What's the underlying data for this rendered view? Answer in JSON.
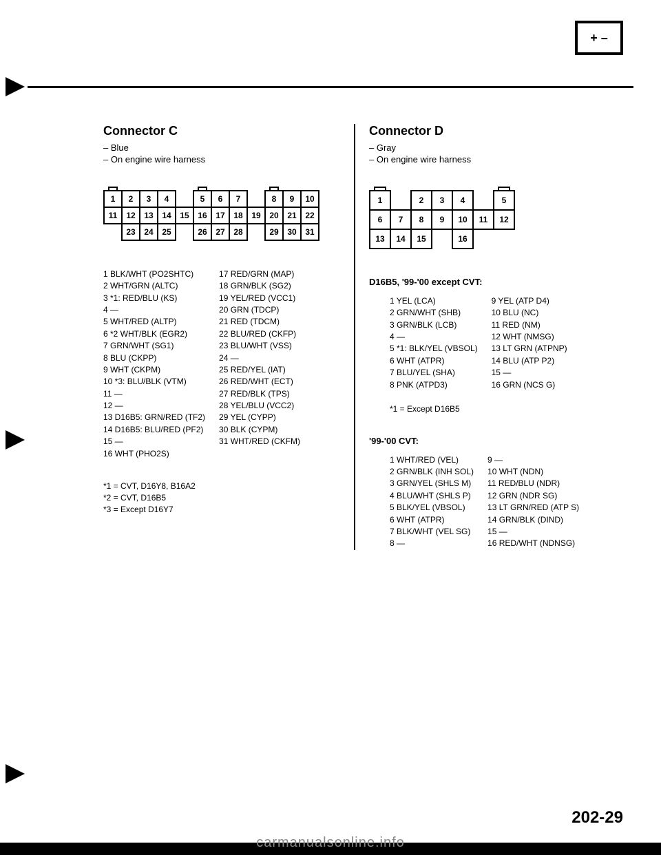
{
  "pageIcon": "+ –",
  "pageNumber": "202-29",
  "watermark": "carmanualsonline.info",
  "connectorC": {
    "title": "Connector C",
    "sub1": "– Blue",
    "sub2": "– On engine wire harness",
    "grid": {
      "rows": [
        [
          "1",
          "2",
          "3",
          "4",
          "",
          "5",
          "6",
          "7",
          "",
          "8",
          "9",
          "10"
        ],
        [
          "11",
          "12",
          "13",
          "14",
          "15",
          "16",
          "17",
          "18",
          "19",
          "20",
          "21",
          "22"
        ],
        [
          "",
          "23",
          "24",
          "25",
          "",
          "26",
          "27",
          "28",
          "",
          "29",
          "30",
          "31"
        ]
      ],
      "notchRow": [
        "n",
        "",
        "",
        "",
        "",
        "n",
        "",
        "",
        "",
        "n",
        "",
        "",
        ""
      ]
    },
    "wiresLeft": [
      "1 BLK/WHT (PO2SHTC)",
      "2 WHT/GRN (ALTC)",
      "3 *1: RED/BLU (KS)",
      "4 —",
      "5 WHT/RED (ALTP)",
      "6 *2 WHT/BLK (EGR2)",
      "7 GRN/WHT (SG1)",
      "8 BLU (CKPP)",
      "9 WHT (CKPM)",
      "10 *3: BLU/BLK (VTM)",
      "11 —",
      "12 —",
      "13 D16B5: GRN/RED (TF2)",
      "14 D16B5: BLU/RED (PF2)",
      "15 —",
      "16 WHT (PHO2S)"
    ],
    "wiresRight": [
      "17 RED/GRN (MAP)",
      "18 GRN/BLK (SG2)",
      "19 YEL/RED (VCC1)",
      "20 GRN (TDCP)",
      "21 RED (TDCM)",
      "22 BLU/RED (CKFP)",
      "23 BLU/WHT (VSS)",
      "24 —",
      "25 RED/YEL (IAT)",
      "26 RED/WHT (ECT)",
      "27 RED/BLK (TPS)",
      "28 YEL/BLU (VCC2)",
      "29 YEL (CYPP)",
      "30 BLK (CYPM)",
      "31 WHT/RED (CKFM)"
    ],
    "footnotes": [
      "*1 = CVT, D16Y8, B16A2",
      "*2 = CVT, D16B5",
      "*3 = Except D16Y7"
    ]
  },
  "connectorD": {
    "title": "Connector D",
    "sub1": "– Gray",
    "sub2": "– On engine wire harness",
    "grid": {
      "rows": [
        [
          "1",
          "",
          "2",
          "3",
          "4",
          "",
          "5"
        ],
        [
          "6",
          "7",
          "8",
          "9",
          "10",
          "11",
          "12"
        ],
        [
          "13",
          "14",
          "15",
          "",
          "16",
          "",
          ""
        ]
      ],
      "notchRow": [
        "n",
        "",
        "",
        "",
        "",
        "",
        "n"
      ]
    },
    "section1": {
      "header": "D16B5, '99-'00 except CVT:",
      "left": [
        "1 YEL (LCA)",
        "2 GRN/WHT (SHB)",
        "3 GRN/BLK (LCB)",
        "4 —",
        "5 *1: BLK/YEL (VBSOL)",
        "6 WHT (ATPR)",
        "7 BLU/YEL (SHA)",
        "8 PNK (ATPD3)"
      ],
      "right": [
        "9 YEL (ATP D4)",
        "10 BLU (NC)",
        "11 RED (NM)",
        "12 WHT (NMSG)",
        "13 LT GRN (ATPNP)",
        "14 BLU (ATP P2)",
        "15 —",
        "16 GRN (NCS G)"
      ],
      "footnote": "*1 = Except D16B5"
    },
    "section2": {
      "header": "'99-'00 CVT:",
      "left": [
        "1 WHT/RED (VEL)",
        "2 GRN/BLK (INH SOL)",
        "3 GRN/YEL (SHLS M)",
        "4 BLU/WHT (SHLS P)",
        "5 BLK/YEL (VBSOL)",
        "6 WHT (ATPR)",
        "7 BLK/WHT (VEL SG)",
        "8 —"
      ],
      "right": [
        "9 —",
        "10 WHT (NDN)",
        "11 RED/BLU (NDR)",
        "12 GRN (NDR SG)",
        "13 LT GRN/RED (ATP S)",
        "14 GRN/BLK (DIND)",
        "15 —",
        "16 RED/WHT (NDNSG)"
      ]
    }
  }
}
